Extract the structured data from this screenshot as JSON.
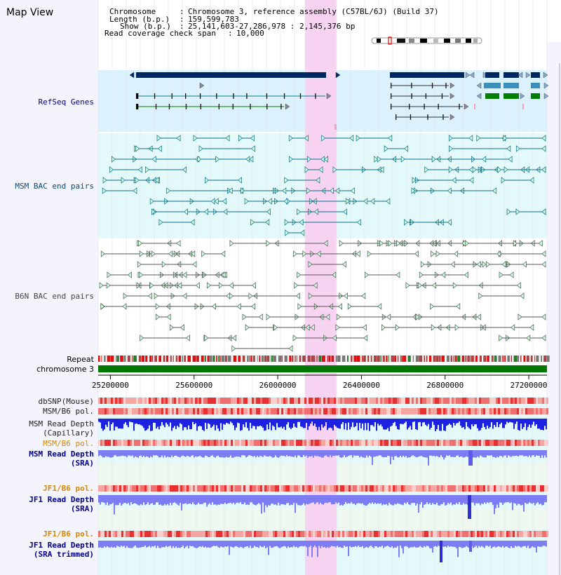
{
  "panel": {
    "title": "Map View"
  },
  "header": {
    "chromosome_label": "Chromosome",
    "chromosome_value": "Chromosome 3, reference assembly (C57BL/6J) (Build 37)",
    "length_label": "Length (b.p.)",
    "length_value": "159,599,783",
    "show_label": "Show (b.p.)",
    "show_value": "25,141,603-27,286,978 : 2,145,376 bp",
    "coverage_label": "Read coverage check span",
    "coverage_value": "10,000"
  },
  "region": {
    "start": 25141603,
    "end": 27286978,
    "highlight_start": 26130000,
    "highlight_end": 26280000
  },
  "axis": {
    "ticks": [
      "25200000",
      "25600000",
      "26000000",
      "26400000",
      "26800000",
      "27200000"
    ],
    "tick_values": [
      25200000,
      25600000,
      26000000,
      26400000,
      26800000,
      27200000
    ]
  },
  "tracks": {
    "refseq": "RefSeq Genes",
    "msm_bac": "MSM BAC end pairs",
    "b6n_bac": "B6N BAC end pairs",
    "repeat": "Repeat",
    "chromosome": "chromosome 3",
    "dbsnp": "dbSNP(Mouse)",
    "msm_b6_pol": "MSM/B6 pol.",
    "msm_depth_cap_1": "MSM Read Depth",
    "msm_depth_cap_2": "(Capillary)",
    "msm_b6_pol_sra": "MSM/B6 pol.",
    "msm_depth_sra_1": "MSM Read Depth",
    "msm_depth_sra_2": "(SRA)",
    "jf1_b6_pol": "JF1/B6 pol.",
    "jf1_depth_sra_1": "JF1 Read Depth",
    "jf1_depth_sra_2": "(SRA)",
    "jf1_b6_pol_trim": "JF1/B6 pol.",
    "jf1_depth_trim_1": "JF1 Read Depth",
    "jf1_depth_trim_2": "(SRA trimmed)"
  },
  "colors": {
    "refseq_bg": "#dbf1fb",
    "msm_bg": "#e4fafa",
    "highlight": "#f7d3f1",
    "gene_dark": "#002860",
    "gene_teal": "#3a8fbd",
    "gene_green": "#007e00",
    "msm_feature": "#0e6b8a",
    "b6n_feature": "#555555",
    "chromosome": "#007700",
    "depth_dark": "#1c22e0",
    "depth_light": "#7d7cf2",
    "label_blue": "#00008b",
    "label_orange": "#d88800"
  }
}
